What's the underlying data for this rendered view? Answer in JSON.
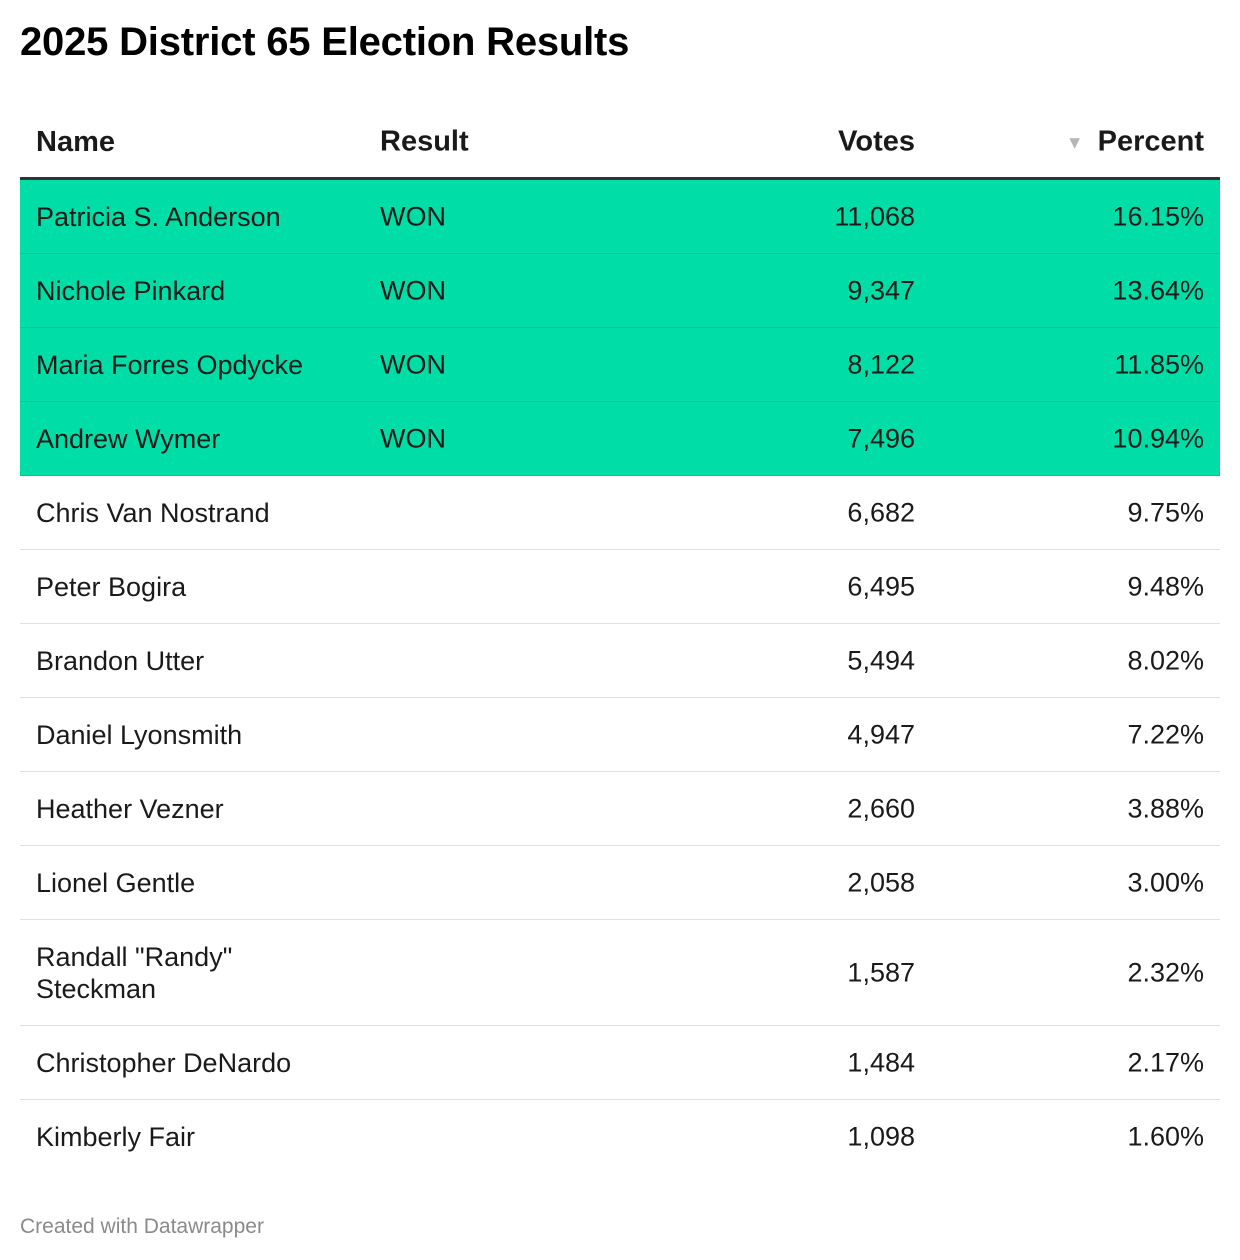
{
  "title": "2025 District 65 Election Results",
  "headers": {
    "name": "Name",
    "result": "Result",
    "votes": "Votes",
    "percent": "Percent"
  },
  "footer": "Created with Datawrapper",
  "colors": {
    "winner_highlight": "#00dda6"
  },
  "chart_data": {
    "type": "table",
    "title": "2025 District 65 Election Results",
    "columns": [
      "Name",
      "Result",
      "Votes",
      "Percent"
    ],
    "sorted_by": "Percent",
    "sort_order": "descending",
    "rows": [
      {
        "name": "Patricia S. Anderson",
        "result": "WON",
        "votes": "11,068",
        "percent": "16.15%"
      },
      {
        "name": "Nichole Pinkard",
        "result": "WON",
        "votes": "9,347",
        "percent": "13.64%"
      },
      {
        "name": "Maria Forres Opdycke",
        "result": "WON",
        "votes": "8,122",
        "percent": "11.85%"
      },
      {
        "name": "Andrew Wymer",
        "result": "WON",
        "votes": "7,496",
        "percent": "10.94%"
      },
      {
        "name": "Chris Van Nostrand",
        "result": "",
        "votes": "6,682",
        "percent": "9.75%"
      },
      {
        "name": "Peter Bogira",
        "result": "",
        "votes": "6,495",
        "percent": "9.48%"
      },
      {
        "name": "Brandon Utter",
        "result": "",
        "votes": "5,494",
        "percent": "8.02%"
      },
      {
        "name": "Daniel Lyonsmith",
        "result": "",
        "votes": "4,947",
        "percent": "7.22%"
      },
      {
        "name": "Heather Vezner",
        "result": "",
        "votes": "2,660",
        "percent": "3.88%"
      },
      {
        "name": "Lionel Gentle",
        "result": "",
        "votes": "2,058",
        "percent": "3.00%"
      },
      {
        "name": "Randall \"Randy\" Steckman",
        "result": "",
        "votes": "1,587",
        "percent": "2.32%"
      },
      {
        "name": "Christopher DeNardo",
        "result": "",
        "votes": "1,484",
        "percent": "2.17%"
      },
      {
        "name": "Kimberly Fair",
        "result": "",
        "votes": "1,098",
        "percent": "1.60%"
      }
    ]
  }
}
